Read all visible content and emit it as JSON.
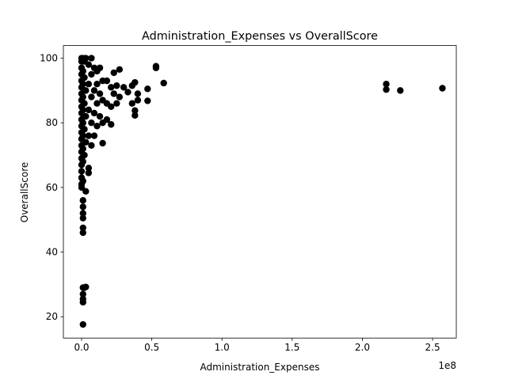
{
  "chart_data": {
    "type": "scatter",
    "title": "Administration_Expenses vs OverallScore",
    "x_label": "Administration_Expenses",
    "y_label": "OverallScore",
    "x_offset_label": "1e8",
    "color": "#000000",
    "x": [
      0,
      0,
      0,
      0,
      0,
      0,
      0,
      0,
      0,
      0,
      0,
      0,
      0,
      0,
      0,
      0,
      0,
      0,
      0,
      0,
      0,
      0,
      1000000,
      1000000,
      1000000,
      1000000,
      1000000,
      1000000,
      1000000,
      1000000,
      1000000,
      1000000,
      1000000,
      1000000,
      1000000,
      1000000,
      1000000,
      1000000,
      1000000,
      1000000,
      1000000,
      1000000,
      1000000,
      2000000,
      2000000,
      2000000,
      2000000,
      2000000,
      2000000,
      3000000,
      3000000,
      3000000,
      3000000,
      3000000,
      3000000,
      5000000,
      5000000,
      5000000,
      5000000,
      5000000,
      5000000,
      7000000,
      7000000,
      7000000,
      7000000,
      7000000,
      9000000,
      9000000,
      9000000,
      9000000,
      11000000,
      11000000,
      11000000,
      11000000,
      13000000,
      13000000,
      13000000,
      15000000,
      15000000,
      15000000,
      15000000,
      18000000,
      18000000,
      18000000,
      21000000,
      21000000,
      21000000,
      23000000,
      23000000,
      25000000,
      25000000,
      27000000,
      27000000,
      30000000,
      33000000,
      36000000,
      36000000,
      38000000,
      38000000,
      38000000,
      40000000,
      40000000,
      47000000,
      47000000,
      53000000,
      53000000,
      58500000,
      217000000,
      217000000,
      227000000,
      257000000
    ],
    "values": [
      100,
      99,
      97,
      95,
      93,
      91,
      89,
      87,
      85,
      83,
      81,
      79,
      77,
      75,
      73,
      71,
      69,
      67,
      65,
      63,
      61,
      60,
      100,
      96,
      92,
      88,
      84,
      80,
      76,
      72,
      68,
      62,
      56,
      54,
      52,
      50.5,
      47.5,
      46,
      29,
      27,
      25.5,
      24.5,
      17.6,
      99,
      94,
      86,
      78,
      70,
      29,
      100,
      90,
      82,
      74,
      58.8,
      29.2,
      98,
      92,
      84,
      76,
      66,
      64.5,
      100,
      95,
      88,
      80,
      73,
      97,
      90,
      83,
      76,
      96,
      92,
      86,
      79,
      97,
      89,
      82,
      93,
      87,
      80,
      73.7,
      93,
      86,
      81,
      91,
      85,
      79.5,
      95.5,
      89,
      91.5,
      86,
      96.5,
      88,
      91,
      89.5,
      91.5,
      86,
      92.5,
      82.3,
      83.8,
      89,
      87,
      90.5,
      86.8,
      97.5,
      97,
      92.3,
      92,
      90.3,
      90,
      90.7
    ],
    "xlim": [
      -12980000,
      266900000
    ],
    "xticks": [
      {
        "value": 0,
        "label": "0.0"
      },
      {
        "value": 50000000,
        "label": "0.5"
      },
      {
        "value": 100000000,
        "label": "1.0"
      },
      {
        "value": 150000000,
        "label": "1.5"
      },
      {
        "value": 200000000,
        "label": "2.0"
      },
      {
        "value": 250000000,
        "label": "2.5"
      }
    ],
    "ylim": [
      13.4,
      103.9
    ],
    "yticks": [
      20,
      40,
      60,
      80,
      100
    ]
  }
}
